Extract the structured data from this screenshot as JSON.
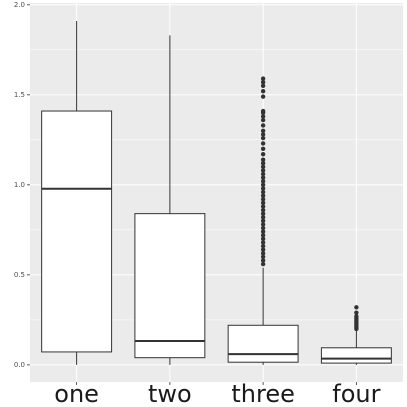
{
  "chart_data": {
    "type": "boxplot",
    "categories": [
      "one",
      "two",
      "three",
      "four"
    ],
    "boxes": [
      {
        "min": 0.0,
        "q1": 0.072,
        "median": 0.978,
        "q3": 1.41,
        "max": 1.91,
        "outliers": []
      },
      {
        "min": 0.0,
        "q1": 0.04,
        "median": 0.133,
        "q3": 0.84,
        "max": 1.83,
        "outliers": []
      },
      {
        "min": 0.0,
        "q1": 0.015,
        "median": 0.06,
        "q3": 0.22,
        "max": 0.54,
        "outliers": [
          0.56,
          0.58,
          0.6,
          0.62,
          0.64,
          0.66,
          0.68,
          0.7,
          0.72,
          0.74,
          0.76,
          0.78,
          0.8,
          0.82,
          0.84,
          0.86,
          0.88,
          0.9,
          0.92,
          0.94,
          0.96,
          0.98,
          1.0,
          1.02,
          1.04,
          1.06,
          1.08,
          1.1,
          1.12,
          1.14,
          1.17,
          1.2,
          1.23,
          1.26,
          1.28,
          1.3,
          1.33,
          1.36,
          1.38,
          1.4,
          1.41,
          1.49,
          1.52,
          1.55,
          1.57,
          1.59
        ]
      },
      {
        "min": 0.0,
        "q1": 0.01,
        "median": 0.035,
        "q3": 0.095,
        "max": 0.19,
        "outliers": [
          0.2,
          0.21,
          0.22,
          0.23,
          0.24,
          0.25,
          0.26,
          0.27,
          0.29,
          0.32
        ]
      }
    ],
    "ylim": [
      -0.095,
      2.01
    ],
    "yticks": [
      {
        "value": 0,
        "label": "0.0"
      },
      0.5,
      {
        "value": 1,
        "label": "1.0"
      },
      1.5,
      {
        "value": 2,
        "label": "2.0"
      }
    ],
    "grid": true,
    "box_color": "#ffffff",
    "line_color": "#333333",
    "panel_color": "#ebebeb"
  }
}
